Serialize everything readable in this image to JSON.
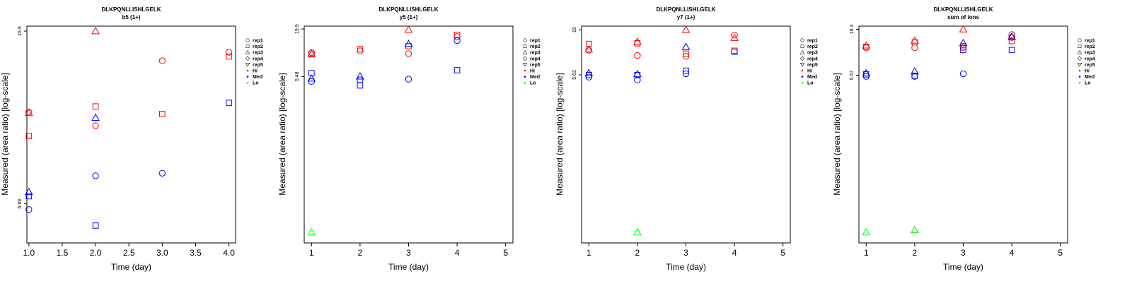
{
  "figure": {
    "legend": {
      "entries": [
        {
          "label": "rep1",
          "symbol": "circle"
        },
        {
          "label": "rep2",
          "symbol": "square"
        },
        {
          "label": "rep3",
          "symbol": "triangle-up"
        },
        {
          "label": "rep4",
          "symbol": "diamond"
        },
        {
          "label": "rep5",
          "symbol": "triangle-down"
        },
        {
          "label": "Hi",
          "symbol": "dot",
          "color": "#ff0000"
        },
        {
          "label": "Med",
          "symbol": "dot",
          "color": "#0000ff"
        },
        {
          "label": "Lo",
          "symbol": "dot",
          "color": "#00ff00"
        }
      ]
    },
    "colors": {
      "Hi": "#ff0000",
      "Med": "#0000ff",
      "Lo": "#00ff00"
    }
  },
  "chart_data": [
    {
      "type": "scatter",
      "title": "DLKPQNLLISHLGELK",
      "subtitle": "b5 (1+)",
      "xlabel": "Time (day)",
      "ylabel": "Measured (area ratio) [log-scale]",
      "x_ticks": [
        "1.0",
        "1.5",
        "2.0",
        "2.5",
        "3.0",
        "3.5",
        "4.0"
      ],
      "y_ticks": [
        "6.69",
        "15.9"
      ],
      "xlim": [
        0.97,
        4.1
      ],
      "ylim": [
        5.5,
        16.3
      ],
      "log_y": true,
      "points": [
        {
          "x": 1,
          "y": 10.6,
          "rep": "rep1",
          "level": "Hi"
        },
        {
          "x": 1,
          "y": 10.55,
          "rep": "rep3",
          "level": "Hi"
        },
        {
          "x": 1,
          "y": 9.4,
          "rep": "rep2",
          "level": "Hi"
        },
        {
          "x": 2,
          "y": 15.9,
          "rep": "rep3",
          "level": "Hi"
        },
        {
          "x": 2,
          "y": 10.9,
          "rep": "rep2",
          "level": "Hi"
        },
        {
          "x": 2,
          "y": 9.9,
          "rep": "rep1",
          "level": "Hi"
        },
        {
          "x": 3,
          "y": 13.7,
          "rep": "rep1",
          "level": "Hi"
        },
        {
          "x": 3,
          "y": 10.5,
          "rep": "rep2",
          "level": "Hi"
        },
        {
          "x": 4,
          "y": 14.3,
          "rep": "rep1",
          "level": "Hi"
        },
        {
          "x": 4,
          "y": 14.0,
          "rep": "rep2",
          "level": "Hi"
        },
        {
          "x": 1,
          "y": 7.1,
          "rep": "rep3",
          "level": "Med"
        },
        {
          "x": 1,
          "y": 6.95,
          "rep": "rep2",
          "level": "Med"
        },
        {
          "x": 1,
          "y": 6.5,
          "rep": "rep1",
          "level": "Med"
        },
        {
          "x": 2,
          "y": 10.3,
          "rep": "rep3",
          "level": "Med"
        },
        {
          "x": 2,
          "y": 7.7,
          "rep": "rep1",
          "level": "Med"
        },
        {
          "x": 2,
          "y": 6.0,
          "rep": "rep2",
          "level": "Med"
        },
        {
          "x": 3,
          "y": 7.8,
          "rep": "rep1",
          "level": "Med"
        },
        {
          "x": 4,
          "y": 11.1,
          "rep": "rep2",
          "level": "Med"
        }
      ]
    },
    {
      "type": "scatter",
      "title": "DLKPQNLLISHLGELK",
      "subtitle": "y5 (1+)",
      "xlabel": "Time (day)",
      "ylabel": "Measured (area ratio) [log-scale]",
      "x_ticks": [
        "1",
        "2",
        "3",
        "4",
        "5"
      ],
      "y_ticks": [
        "5.48",
        "19.9"
      ],
      "xlim": [
        0.85,
        5.15
      ],
      "ylim": [
        0.06,
        21.5
      ],
      "log_y": true,
      "points": [
        {
          "x": 1,
          "y": 10.5,
          "rep": "rep1",
          "level": "Hi"
        },
        {
          "x": 1,
          "y": 10.2,
          "rep": "rep3",
          "level": "Hi"
        },
        {
          "x": 1,
          "y": 10.0,
          "rep": "rep2",
          "level": "Hi"
        },
        {
          "x": 2,
          "y": 11.5,
          "rep": "rep2",
          "level": "Hi"
        },
        {
          "x": 2,
          "y": 11.0,
          "rep": "rep1",
          "level": "Hi"
        },
        {
          "x": 3,
          "y": 19.5,
          "rep": "rep3",
          "level": "Hi"
        },
        {
          "x": 3,
          "y": 12.5,
          "rep": "rep2",
          "level": "Hi"
        },
        {
          "x": 3,
          "y": 10.2,
          "rep": "rep1",
          "level": "Hi"
        },
        {
          "x": 4,
          "y": 17.0,
          "rep": "rep2",
          "level": "Hi"
        },
        {
          "x": 4,
          "y": 16.2,
          "rep": "rep1",
          "level": "Hi"
        },
        {
          "x": 1,
          "y": 6.0,
          "rep": "rep2",
          "level": "Med"
        },
        {
          "x": 1,
          "y": 5.2,
          "rep": "rep3",
          "level": "Med"
        },
        {
          "x": 1,
          "y": 4.8,
          "rep": "rep1",
          "level": "Med"
        },
        {
          "x": 2,
          "y": 5.5,
          "rep": "rep3",
          "level": "Med"
        },
        {
          "x": 2,
          "y": 5.0,
          "rep": "rep1",
          "level": "Med"
        },
        {
          "x": 2,
          "y": 4.3,
          "rep": "rep2",
          "level": "Med"
        },
        {
          "x": 3,
          "y": 13.3,
          "rep": "rep3",
          "level": "Med"
        },
        {
          "x": 3,
          "y": 5.1,
          "rep": "rep1",
          "level": "Med"
        },
        {
          "x": 4,
          "y": 14.5,
          "rep": "rep1",
          "level": "Med"
        },
        {
          "x": 4,
          "y": 6.5,
          "rep": "rep2",
          "level": "Med"
        },
        {
          "x": 1,
          "y": 0.08,
          "rep": "rep3",
          "level": "Lo"
        }
      ]
    },
    {
      "type": "scatter",
      "title": "DLKPQNLLISHLGELK",
      "subtitle": "y7 (1+)",
      "xlabel": "Time (day)",
      "ylabel": "Measured (area ratio) [log-scale]",
      "x_ticks": [
        "1",
        "2",
        "3",
        "4",
        "5"
      ],
      "y_ticks": [
        "5.63",
        "19"
      ],
      "xlim": [
        0.85,
        5.15
      ],
      "ylim": [
        0.06,
        21
      ],
      "log_y": true,
      "points": [
        {
          "x": 1,
          "y": 13.0,
          "rep": "rep2",
          "level": "Hi"
        },
        {
          "x": 1,
          "y": 11.2,
          "rep": "rep3",
          "level": "Hi"
        },
        {
          "x": 1,
          "y": 11.0,
          "rep": "rep1",
          "level": "Hi"
        },
        {
          "x": 2,
          "y": 13.8,
          "rep": "rep3",
          "level": "Hi"
        },
        {
          "x": 2,
          "y": 13.2,
          "rep": "rep2",
          "level": "Hi"
        },
        {
          "x": 2,
          "y": 9.5,
          "rep": "rep1",
          "level": "Hi"
        },
        {
          "x": 3,
          "y": 19.0,
          "rep": "rep3",
          "level": "Hi"
        },
        {
          "x": 3,
          "y": 10.0,
          "rep": "rep2",
          "level": "Hi"
        },
        {
          "x": 3,
          "y": 9.3,
          "rep": "rep1",
          "level": "Hi"
        },
        {
          "x": 4,
          "y": 16.5,
          "rep": "rep1",
          "level": "Hi"
        },
        {
          "x": 4,
          "y": 15.3,
          "rep": "rep3",
          "level": "Hi"
        },
        {
          "x": 4,
          "y": 10.8,
          "rep": "rep2",
          "level": "Hi"
        },
        {
          "x": 1,
          "y": 5.9,
          "rep": "rep3",
          "level": "Med"
        },
        {
          "x": 1,
          "y": 5.6,
          "rep": "rep2",
          "level": "Med"
        },
        {
          "x": 1,
          "y": 5.3,
          "rep": "rep1",
          "level": "Med"
        },
        {
          "x": 2,
          "y": 5.75,
          "rep": "rep3",
          "level": "Med"
        },
        {
          "x": 2,
          "y": 5.6,
          "rep": "rep2",
          "level": "Med"
        },
        {
          "x": 2,
          "y": 4.9,
          "rep": "rep1",
          "level": "Med"
        },
        {
          "x": 3,
          "y": 12.0,
          "rep": "rep3",
          "level": "Med"
        },
        {
          "x": 3,
          "y": 6.3,
          "rep": "rep2",
          "level": "Med"
        },
        {
          "x": 3,
          "y": 5.8,
          "rep": "rep1",
          "level": "Med"
        },
        {
          "x": 4,
          "y": 10.5,
          "rep": "rep2",
          "level": "Med"
        },
        {
          "x": 2,
          "y": 0.08,
          "rep": "rep3",
          "level": "Lo"
        }
      ]
    },
    {
      "type": "scatter",
      "title": "DLKPQNLLISHLGELK",
      "subtitle": "sum of ions",
      "xlabel": "Time (day)",
      "ylabel": "Measured (area ratio) [log-scale]",
      "x_ticks": [
        "1",
        "2",
        "3",
        "4",
        "5"
      ],
      "y_ticks": [
        "5.57",
        "19.3"
      ],
      "xlim": [
        0.85,
        5.15
      ],
      "ylim": [
        0.06,
        21
      ],
      "log_y": true,
      "points": [
        {
          "x": 1,
          "y": 12.5,
          "rep": "rep3",
          "level": "Hi"
        },
        {
          "x": 1,
          "y": 12.0,
          "rep": "rep2",
          "level": "Hi"
        },
        {
          "x": 1,
          "y": 11.7,
          "rep": "rep1",
          "level": "Hi"
        },
        {
          "x": 2,
          "y": 14.2,
          "rep": "rep3",
          "level": "Hi"
        },
        {
          "x": 2,
          "y": 13.6,
          "rep": "rep2",
          "level": "Hi"
        },
        {
          "x": 2,
          "y": 11.7,
          "rep": "rep1",
          "level": "Hi"
        },
        {
          "x": 3,
          "y": 19.3,
          "rep": "rep3",
          "level": "Hi"
        },
        {
          "x": 3,
          "y": 12.2,
          "rep": "rep2",
          "level": "Hi"
        },
        {
          "x": 3,
          "y": 11.8,
          "rep": "rep1",
          "level": "Hi"
        },
        {
          "x": 4,
          "y": 16.7,
          "rep": "rep1",
          "level": "Hi"
        },
        {
          "x": 4,
          "y": 14.0,
          "rep": "rep2",
          "level": "Hi"
        },
        {
          "x": 1,
          "y": 5.9,
          "rep": "rep3",
          "level": "Med"
        },
        {
          "x": 1,
          "y": 5.7,
          "rep": "rep2",
          "level": "Med"
        },
        {
          "x": 1,
          "y": 5.4,
          "rep": "rep1",
          "level": "Med"
        },
        {
          "x": 2,
          "y": 6.2,
          "rep": "rep3",
          "level": "Med"
        },
        {
          "x": 2,
          "y": 5.5,
          "rep": "rep2",
          "level": "Med"
        },
        {
          "x": 2,
          "y": 5.4,
          "rep": "rep1",
          "level": "Med"
        },
        {
          "x": 3,
          "y": 13.3,
          "rep": "rep3",
          "level": "Med"
        },
        {
          "x": 3,
          "y": 11.0,
          "rep": "rep2",
          "level": "Med"
        },
        {
          "x": 3,
          "y": 5.8,
          "rep": "rep1",
          "level": "Med"
        },
        {
          "x": 4,
          "y": 15.8,
          "rep": "rep3",
          "level": "Med"
        },
        {
          "x": 4,
          "y": 15.5,
          "rep": "rep1",
          "level": "Med"
        },
        {
          "x": 4,
          "y": 11.0,
          "rep": "rep2",
          "level": "Med"
        },
        {
          "x": 1,
          "y": 0.08,
          "rep": "rep3",
          "level": "Lo"
        },
        {
          "x": 2,
          "y": 0.085,
          "rep": "rep3",
          "level": "Lo"
        }
      ]
    }
  ]
}
